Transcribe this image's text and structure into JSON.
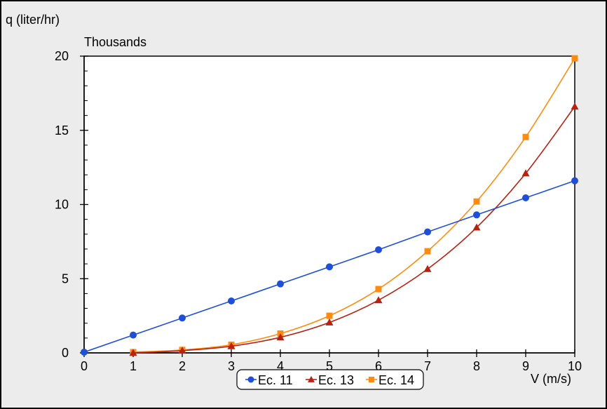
{
  "chart_data": {
    "type": "line",
    "ylabel": "q (liter/hr)",
    "yunit_note": "Thousands",
    "xlabel": "V (m/s)",
    "xlim": [
      0,
      10
    ],
    "ylim": [
      0,
      20
    ],
    "x_ticks": [
      "0",
      "1",
      "2",
      "3",
      "4",
      "5",
      "6",
      "7",
      "8",
      "9",
      "10"
    ],
    "y_ticks": [
      "0",
      "5",
      "10",
      "15",
      "20"
    ],
    "grid": false,
    "legend_position": "bottom-center",
    "series": [
      {
        "name": "Ec. 11",
        "color": "#1f4fd8",
        "marker": "circle",
        "x": [
          0,
          1,
          2,
          3,
          4,
          5,
          6,
          7,
          8,
          9,
          10
        ],
        "y": [
          0.05,
          1.2,
          2.35,
          3.5,
          4.65,
          5.8,
          6.95,
          8.15,
          9.3,
          10.45,
          11.6
        ]
      },
      {
        "name": "Ec. 13",
        "color": "#b82010",
        "marker": "triangle",
        "x": [
          1,
          2,
          3,
          4,
          5,
          6,
          7,
          8,
          9,
          10
        ],
        "y": [
          0.0,
          0.15,
          0.45,
          1.05,
          2.05,
          3.55,
          5.65,
          8.45,
          12.1,
          16.6
        ]
      },
      {
        "name": "Ec. 14",
        "color": "#ff8c10",
        "marker": "square",
        "x": [
          1,
          2,
          3,
          4,
          5,
          6,
          7,
          8,
          9,
          10
        ],
        "y": [
          0.05,
          0.2,
          0.55,
          1.3,
          2.5,
          4.3,
          6.85,
          10.2,
          14.55,
          19.85
        ]
      }
    ]
  }
}
